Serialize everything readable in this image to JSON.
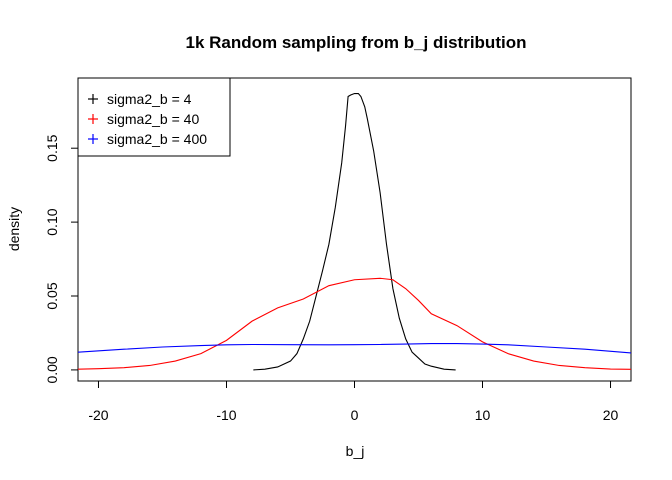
{
  "chart_data": {
    "type": "line",
    "title": "1k Random sampling from b_j distribution",
    "xlabel": "b_j",
    "ylabel": "density",
    "xlim": [
      -21.6,
      21.6
    ],
    "ylim": [
      -0.0075,
      0.1975
    ],
    "x_ticks": [
      -20,
      -10,
      0,
      10,
      20
    ],
    "x_tick_labels": [
      "-20",
      "-10",
      "0",
      "10",
      "20"
    ],
    "y_ticks": [
      0.0,
      0.05,
      0.1,
      0.15
    ],
    "y_tick_labels": [
      "0.00",
      "0.05",
      "0.10",
      "0.15"
    ],
    "grid": false,
    "legend_position": "top-left",
    "series": [
      {
        "name": "sigma2_b = 4",
        "color": "#000000",
        "x": [
          -7.9,
          -7.0,
          -6.0,
          -5.0,
          -4.5,
          -4.0,
          -3.5,
          -3.0,
          -2.5,
          -2.0,
          -1.5,
          -1.0,
          -0.7,
          -0.5,
          -0.3,
          0.0,
          0.3,
          0.5,
          0.8,
          1.0,
          1.5,
          2.0,
          2.5,
          3.0,
          3.5,
          4.0,
          4.5,
          5.0,
          5.5,
          6.0,
          7.0,
          7.9
        ],
        "y": [
          0.0,
          0.0005,
          0.002,
          0.006,
          0.011,
          0.021,
          0.033,
          0.05,
          0.067,
          0.085,
          0.11,
          0.14,
          0.165,
          0.185,
          0.186,
          0.187,
          0.187,
          0.185,
          0.178,
          0.17,
          0.148,
          0.12,
          0.085,
          0.055,
          0.035,
          0.021,
          0.012,
          0.008,
          0.004,
          0.0025,
          0.0005,
          0.0
        ]
      },
      {
        "name": "sigma2_b = 40",
        "color": "#ff0000",
        "x": [
          -21.6,
          -20,
          -18,
          -16,
          -14,
          -12,
          -10,
          -8,
          -6,
          -4,
          -2,
          0,
          2,
          3,
          4,
          5,
          6,
          8,
          10,
          12,
          14,
          16,
          18,
          20,
          21.6
        ],
        "y": [
          0.0005,
          0.0008,
          0.0015,
          0.003,
          0.006,
          0.011,
          0.02,
          0.033,
          0.042,
          0.048,
          0.057,
          0.061,
          0.062,
          0.061,
          0.055,
          0.047,
          0.038,
          0.03,
          0.019,
          0.011,
          0.006,
          0.003,
          0.0015,
          0.0006,
          0.0004
        ]
      },
      {
        "name": "sigma2_b = 400",
        "color": "#0000ff",
        "x": [
          -21.6,
          -18,
          -15,
          -12,
          -10,
          -8,
          -5,
          -2,
          0,
          2,
          4,
          6,
          8,
          10,
          12,
          15,
          18,
          21.6
        ],
        "y": [
          0.012,
          0.014,
          0.0155,
          0.0165,
          0.017,
          0.0172,
          0.0171,
          0.017,
          0.0171,
          0.0172,
          0.0175,
          0.0178,
          0.0178,
          0.0175,
          0.017,
          0.0155,
          0.014,
          0.0115
        ]
      }
    ]
  }
}
